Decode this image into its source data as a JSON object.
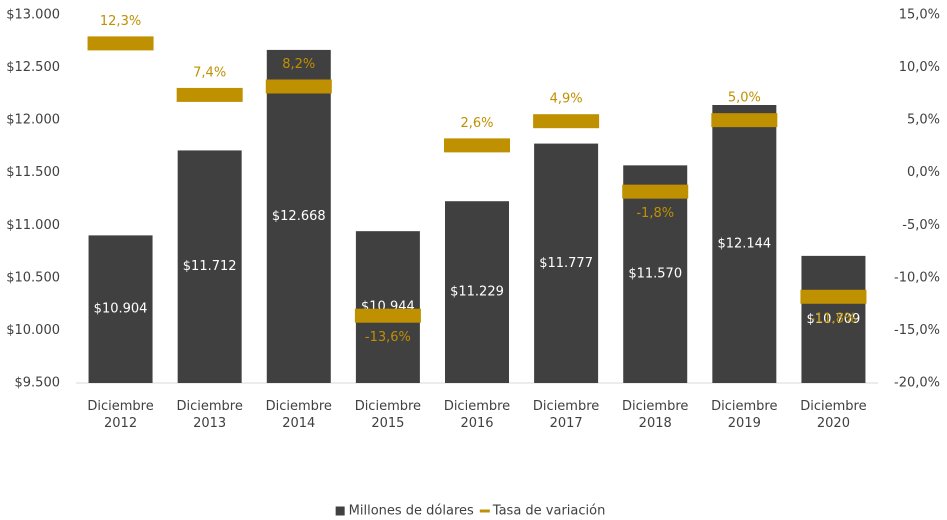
{
  "chart_data": {
    "type": "bar",
    "categories": [
      "Diciembre 2012",
      "Diciembre 2013",
      "Diciembre 2014",
      "Diciembre 2015",
      "Diciembre 2016",
      "Diciembre 2017",
      "Diciembre 2018",
      "Diciembre 2019",
      "Diciembre 2020"
    ],
    "series": [
      {
        "name": "Millones de dólares",
        "type": "bar",
        "color": "#404040",
        "values": [
          10904,
          11712,
          12668,
          10944,
          11229,
          11777,
          11570,
          12144,
          10709
        ],
        "value_labels": [
          "$10.904",
          "$11.712",
          "$12.668",
          "$10.944",
          "$11.229",
          "$11.777",
          "$11.570",
          "$12.144",
          "$10.709"
        ]
      },
      {
        "name": "Tasa de variación",
        "type": "dash",
        "color": "#bf9000",
        "axis": "y2",
        "values": [
          12.3,
          7.4,
          8.2,
          -13.6,
          2.6,
          4.9,
          -1.8,
          5.0,
          -11.8
        ],
        "value_labels": [
          "12,3%",
          "7,4%",
          "8,2%",
          "-13,6%",
          "2,6%",
          "4,9%",
          "-1,8%",
          "5,0%",
          "-11,8%"
        ]
      }
    ],
    "ylim": [
      9500,
      13000
    ],
    "yticks": [
      {
        "value": 9500,
        "label": "$9.500"
      },
      {
        "value": 10000,
        "label": "$10.000"
      },
      {
        "value": 10500,
        "label": "$10.500"
      },
      {
        "value": 11000,
        "label": "$11.000"
      },
      {
        "value": 11500,
        "label": "$11.500"
      },
      {
        "value": 12000,
        "label": "$12.000"
      },
      {
        "value": 12500,
        "label": "$12.500"
      },
      {
        "value": 13000,
        "label": "$13.000"
      }
    ],
    "y2lim": [
      -20,
      15
    ],
    "y2ticks": [
      {
        "value": -20,
        "label": "-20,0%"
      },
      {
        "value": -15,
        "label": "-15,0%"
      },
      {
        "value": -10,
        "label": "-10,0%"
      },
      {
        "value": -5,
        "label": "-5,0%"
      },
      {
        "value": 0,
        "label": "0,0%"
      },
      {
        "value": 5,
        "label": "5,0%"
      },
      {
        "value": 10,
        "label": "10,0%"
      },
      {
        "value": 15,
        "label": "15,0%"
      }
    ],
    "legend": "bottom"
  }
}
